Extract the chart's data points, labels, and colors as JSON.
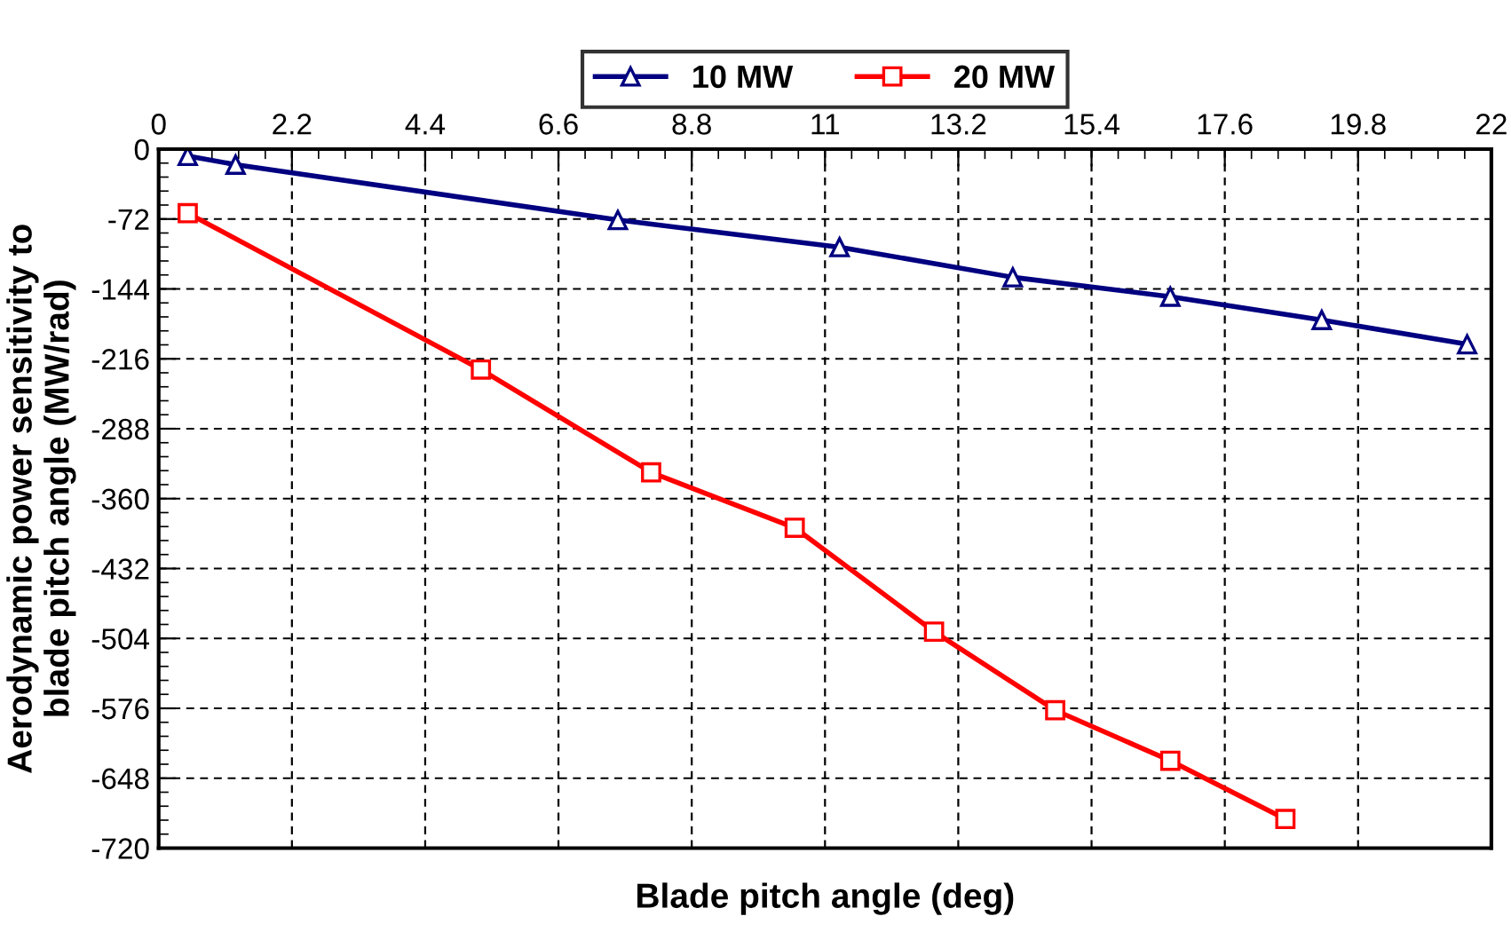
{
  "chart_data": {
    "type": "line",
    "xlabel": "Blade pitch angle (deg)",
    "ylabel": "Aerodynamic power sensitivity to\nblade pitch angle (MW/rad)",
    "xlim": [
      0,
      22
    ],
    "xticks": [
      0,
      2.2,
      4.4,
      6.6,
      8.8,
      11,
      13.2,
      15.4,
      17.6,
      19.8,
      22
    ],
    "ylim": [
      -720,
      0
    ],
    "yticks": [
      0,
      -72,
      -144,
      -216,
      -288,
      -360,
      -432,
      -504,
      -576,
      -648,
      -720
    ],
    "grid": true,
    "legend": "top",
    "line_style": "solid",
    "series": [
      {
        "name": "10 MW",
        "color": "#000080",
        "marker": "triangle",
        "x": [
          0.48,
          1.27,
          7.58,
          11.24,
          14.1,
          16.7,
          19.2,
          21.6
        ],
        "values": [
          -7,
          -16,
          -73,
          -101,
          -132,
          -152,
          -176,
          -201
        ]
      },
      {
        "name": "20 MW",
        "color": "#ff0000",
        "marker": "square",
        "x": [
          0.48,
          5.32,
          8.13,
          10.5,
          12.8,
          14.8,
          16.7,
          18.6
        ],
        "values": [
          -66,
          -227,
          -333,
          -390,
          -497,
          -578,
          -630,
          -690
        ]
      }
    ]
  }
}
